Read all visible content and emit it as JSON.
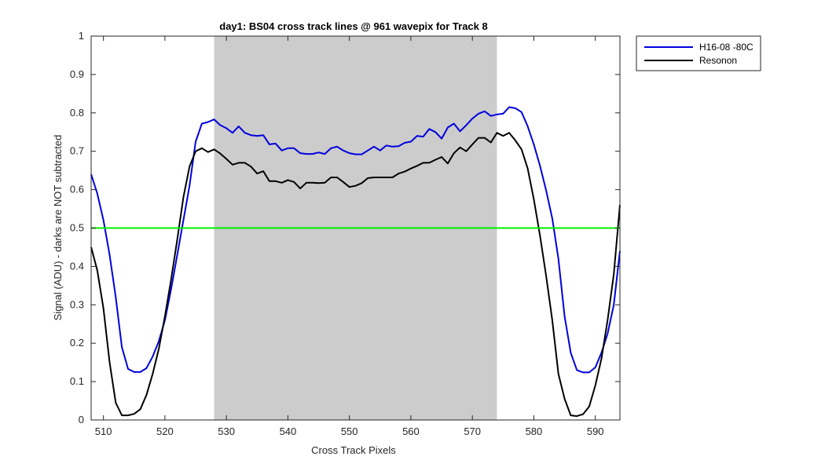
{
  "chart_data": {
    "type": "line",
    "title": "day1: BS04  cross track lines @ 961 wavepix for Track 8",
    "xlabel": "Cross Track Pixels",
    "ylabel": "Signal (ADU) - darks are NOT subtracted",
    "xlim": [
      508,
      594
    ],
    "ylim": [
      0,
      1
    ],
    "xticks": [
      510,
      520,
      530,
      540,
      550,
      560,
      570,
      580,
      590
    ],
    "yticks": [
      0,
      0.1,
      0.2,
      0.3,
      0.4,
      0.5,
      0.6,
      0.7,
      0.8,
      0.9,
      1
    ],
    "xtick_labels": [
      "510",
      "520",
      "530",
      "540",
      "550",
      "560",
      "570",
      "580",
      "590"
    ],
    "ytick_labels": [
      "0",
      "0.1",
      "0.2",
      "0.3",
      "0.4",
      "0.5",
      "0.6",
      "0.7",
      "0.8",
      "0.9",
      "1"
    ],
    "shaded_region": {
      "x_start": 528,
      "x_end": 574,
      "color": "#cccccc"
    },
    "reference_line": {
      "y": 0.5,
      "color": "#00ee00"
    },
    "legend_position": "outside-top-right",
    "grid": false,
    "series": [
      {
        "name": "H16-08 -80C",
        "color": "#0000dd",
        "x": [
          508,
          509,
          510,
          511,
          512,
          513,
          514,
          515,
          516,
          517,
          518,
          519,
          520,
          521,
          522,
          523,
          524,
          525,
          526,
          527,
          528,
          529,
          530,
          531,
          532,
          533,
          534,
          535,
          536,
          537,
          538,
          539,
          540,
          541,
          542,
          543,
          544,
          545,
          546,
          547,
          548,
          549,
          550,
          551,
          552,
          553,
          554,
          555,
          556,
          557,
          558,
          559,
          560,
          561,
          562,
          563,
          564,
          565,
          566,
          567,
          568,
          569,
          570,
          571,
          572,
          573,
          574,
          575,
          576,
          577,
          578,
          579,
          580,
          581,
          582,
          583,
          584,
          585,
          586,
          587,
          588,
          589,
          590,
          591,
          592,
          593,
          594
        ],
        "y": [
          0.64,
          0.59,
          0.52,
          0.43,
          0.32,
          0.19,
          0.133,
          0.125,
          0.125,
          0.135,
          0.165,
          0.205,
          0.26,
          0.34,
          0.43,
          0.52,
          0.61,
          0.725,
          0.772,
          0.776,
          0.783,
          0.768,
          0.76,
          0.748,
          0.765,
          0.748,
          0.742,
          0.74,
          0.742,
          0.718,
          0.72,
          0.702,
          0.708,
          0.708,
          0.695,
          0.693,
          0.693,
          0.697,
          0.693,
          0.708,
          0.712,
          0.702,
          0.695,
          0.692,
          0.692,
          0.702,
          0.712,
          0.702,
          0.715,
          0.712,
          0.713,
          0.722,
          0.725,
          0.74,
          0.738,
          0.758,
          0.75,
          0.733,
          0.762,
          0.772,
          0.752,
          0.768,
          0.785,
          0.798,
          0.804,
          0.792,
          0.796,
          0.798,
          0.815,
          0.812,
          0.802,
          0.765,
          0.718,
          0.662,
          0.598,
          0.525,
          0.42,
          0.27,
          0.175,
          0.13,
          0.124,
          0.124,
          0.137,
          0.175,
          0.225,
          0.3,
          0.44
        ]
      },
      {
        "name": "Resonon",
        "color": "#000000",
        "x": [
          508,
          509,
          510,
          511,
          512,
          513,
          514,
          515,
          516,
          517,
          518,
          519,
          520,
          521,
          522,
          523,
          524,
          525,
          526,
          527,
          528,
          529,
          530,
          531,
          532,
          533,
          534,
          535,
          536,
          537,
          538,
          539,
          540,
          541,
          542,
          543,
          544,
          545,
          546,
          547,
          548,
          549,
          550,
          551,
          552,
          553,
          554,
          555,
          556,
          557,
          558,
          559,
          560,
          561,
          562,
          563,
          564,
          565,
          566,
          567,
          568,
          569,
          570,
          571,
          572,
          573,
          574,
          575,
          576,
          577,
          578,
          579,
          580,
          581,
          582,
          583,
          584,
          585,
          586,
          587,
          588,
          589,
          590,
          591,
          592,
          593,
          594
        ],
        "y": [
          0.45,
          0.39,
          0.29,
          0.15,
          0.045,
          0.012,
          0.012,
          0.016,
          0.028,
          0.065,
          0.12,
          0.185,
          0.27,
          0.365,
          0.47,
          0.58,
          0.66,
          0.7,
          0.708,
          0.698,
          0.705,
          0.694,
          0.68,
          0.665,
          0.67,
          0.67,
          0.66,
          0.642,
          0.648,
          0.622,
          0.622,
          0.618,
          0.625,
          0.62,
          0.603,
          0.618,
          0.618,
          0.617,
          0.618,
          0.632,
          0.632,
          0.62,
          0.607,
          0.61,
          0.617,
          0.63,
          0.632,
          0.632,
          0.632,
          0.632,
          0.642,
          0.647,
          0.655,
          0.662,
          0.67,
          0.67,
          0.678,
          0.685,
          0.668,
          0.695,
          0.71,
          0.7,
          0.718,
          0.735,
          0.735,
          0.723,
          0.748,
          0.74,
          0.748,
          0.728,
          0.705,
          0.655,
          0.575,
          0.48,
          0.375,
          0.26,
          0.12,
          0.055,
          0.012,
          0.01,
          0.015,
          0.035,
          0.09,
          0.16,
          0.26,
          0.38,
          0.56
        ]
      },
      {
        "name": "",
        "color": "#00ee00",
        "x": [
          508,
          594
        ],
        "y": [
          0.5,
          0.5
        ]
      }
    ]
  }
}
